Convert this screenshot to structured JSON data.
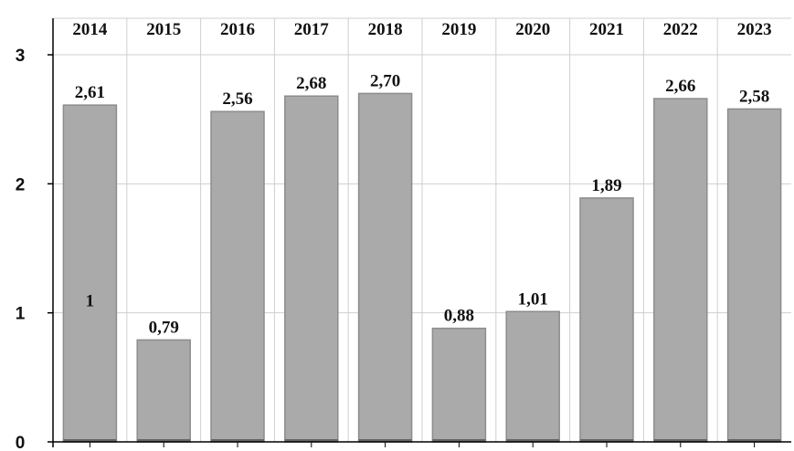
{
  "chart_data": {
    "type": "bar",
    "categories": [
      "2014",
      "2015",
      "2016",
      "2017",
      "2018",
      "2019",
      "2020",
      "2021",
      "2022",
      "2023"
    ],
    "values": [
      2.61,
      0.79,
      2.56,
      2.68,
      2.7,
      0.88,
      1.01,
      1.89,
      2.66,
      2.58
    ],
    "data_labels": [
      "2,61",
      "0,79",
      "2,56",
      "2,68",
      "2,70",
      "0,88",
      "1,01",
      "1,89",
      "2,66",
      "2,58"
    ],
    "yticks": [
      "0",
      "1",
      "2",
      "3"
    ],
    "ylim": [
      0,
      3
    ],
    "category_axis_position": "top",
    "grid": true,
    "annotation": "1",
    "colors": {
      "bar": "#aaaaaa",
      "bar_edge": "#8c8c8c",
      "bar_base": "#666666",
      "grid": "#cfcfcf",
      "axis": "#000000"
    }
  }
}
